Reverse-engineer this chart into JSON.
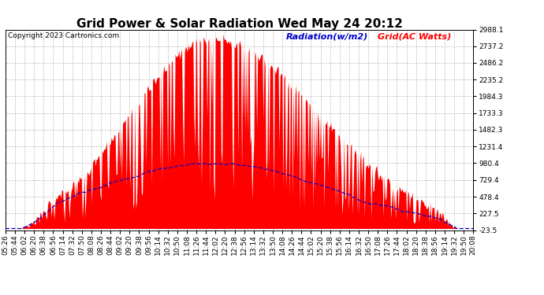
{
  "title": "Grid Power & Solar Radiation Wed May 24 20:12",
  "copyright": "Copyright 2023 Cartronics.com",
  "legend_radiation": "Radiation(w/m2)",
  "legend_grid": "Grid(AC Watts)",
  "ylabel_values": [
    2988.1,
    2737.2,
    2486.2,
    2235.2,
    1984.3,
    1733.3,
    1482.3,
    1231.4,
    980.4,
    729.4,
    478.4,
    227.5,
    -23.5
  ],
  "ymin": -23.5,
  "ymax": 2988.1,
  "background_color": "#ffffff",
  "plot_bg_color": "#ffffff",
  "grid_color": "#bbbbbb",
  "radiation_color": "#0000cc",
  "grid_fill_color": "#ff0000",
  "title_fontsize": 11,
  "tick_fontsize": 6.5,
  "copyright_fontsize": 6.5,
  "legend_fontsize": 8,
  "total_minutes": 882,
  "base_hour": 5,
  "base_minute": 26,
  "tick_interval_min": 18,
  "peak_minute": 390,
  "sigma_grid": 180,
  "sigma_rad": 220,
  "grid_peak": 2850,
  "rad_peak": 960
}
